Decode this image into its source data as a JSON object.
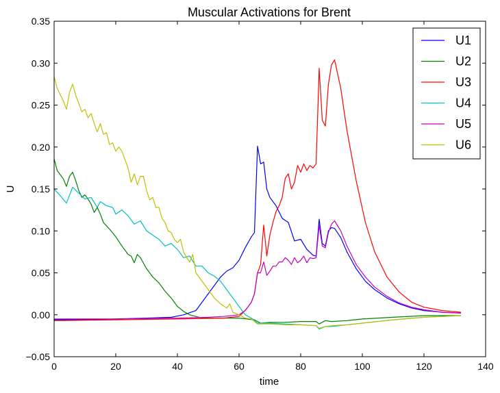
{
  "chart_data": {
    "type": "line",
    "title": "Muscular Activations for Brent",
    "xlabel": "time",
    "ylabel": "U",
    "xlim": [
      0,
      140
    ],
    "ylim": [
      -0.05,
      0.35
    ],
    "xticks": [
      0,
      20,
      40,
      60,
      80,
      100,
      120,
      140
    ],
    "xtick_labels": [
      "0",
      "20",
      "40",
      "60",
      "80",
      "100",
      "120",
      "140"
    ],
    "yticks": [
      -0.05,
      0.0,
      0.05,
      0.1,
      0.15,
      0.2,
      0.25,
      0.3,
      0.35
    ],
    "ytick_labels": [
      "−0.05",
      "0.00",
      "0.05",
      "0.10",
      "0.15",
      "0.20",
      "0.25",
      "0.30",
      "0.35"
    ],
    "grid": false,
    "legend_position": "top-right",
    "series": [
      {
        "name": "U1",
        "color": "#0000ff",
        "points": [
          [
            0,
            -0.006
          ],
          [
            10,
            -0.006
          ],
          [
            20,
            -0.005
          ],
          [
            30,
            -0.004
          ],
          [
            38,
            -0.003
          ],
          [
            42,
            0.0
          ],
          [
            46,
            0.005
          ],
          [
            48,
            0.015
          ],
          [
            50,
            0.025
          ],
          [
            52,
            0.035
          ],
          [
            54,
            0.045
          ],
          [
            56,
            0.052
          ],
          [
            58,
            0.056
          ],
          [
            60,
            0.065
          ],
          [
            62,
            0.08
          ],
          [
            64,
            0.093
          ],
          [
            65,
            0.098
          ],
          [
            66,
            0.201
          ],
          [
            67,
            0.18
          ],
          [
            68,
            0.182
          ],
          [
            69,
            0.15
          ],
          [
            70,
            0.14
          ],
          [
            72,
            0.13
          ],
          [
            74,
            0.115
          ],
          [
            76,
            0.11
          ],
          [
            78,
            0.088
          ],
          [
            80,
            0.09
          ],
          [
            82,
            0.078
          ],
          [
            84,
            0.071
          ],
          [
            85,
            0.07
          ],
          [
            86,
            0.114
          ],
          [
            87,
            0.085
          ],
          [
            88,
            0.082
          ],
          [
            89,
            0.1
          ],
          [
            90,
            0.104
          ],
          [
            91,
            0.103
          ],
          [
            93,
            0.092
          ],
          [
            95,
            0.075
          ],
          [
            98,
            0.055
          ],
          [
            101,
            0.04
          ],
          [
            104,
            0.03
          ],
          [
            108,
            0.02
          ],
          [
            112,
            0.013
          ],
          [
            116,
            0.008
          ],
          [
            120,
            0.005
          ],
          [
            126,
            0.003
          ],
          [
            132,
            0.002
          ]
        ]
      },
      {
        "name": "U2",
        "color": "#008000",
        "points": [
          [
            0,
            0.186
          ],
          [
            1,
            0.172
          ],
          [
            3,
            0.162
          ],
          [
            4,
            0.153
          ],
          [
            5,
            0.165
          ],
          [
            6,
            0.17
          ],
          [
            7,
            0.16
          ],
          [
            8,
            0.148
          ],
          [
            9,
            0.14
          ],
          [
            10,
            0.143
          ],
          [
            11,
            0.138
          ],
          [
            12,
            0.132
          ],
          [
            13,
            0.122
          ],
          [
            14,
            0.128
          ],
          [
            15,
            0.12
          ],
          [
            16,
            0.11
          ],
          [
            18,
            0.102
          ],
          [
            20,
            0.093
          ],
          [
            22,
            0.082
          ],
          [
            24,
            0.072
          ],
          [
            25,
            0.07
          ],
          [
            26,
            0.062
          ],
          [
            27,
            0.072
          ],
          [
            28,
            0.068
          ],
          [
            30,
            0.055
          ],
          [
            32,
            0.045
          ],
          [
            34,
            0.038
          ],
          [
            36,
            0.028
          ],
          [
            38,
            0.02
          ],
          [
            40,
            0.01
          ],
          [
            42,
            0.004
          ],
          [
            44,
            0.0
          ],
          [
            48,
            -0.004
          ],
          [
            55,
            -0.004
          ],
          [
            60,
            -0.004
          ],
          [
            65,
            -0.006
          ],
          [
            67,
            -0.01
          ],
          [
            70,
            -0.009
          ],
          [
            75,
            -0.009
          ],
          [
            80,
            -0.008
          ],
          [
            85,
            -0.008
          ],
          [
            86,
            -0.011
          ],
          [
            88,
            -0.007
          ],
          [
            90,
            -0.008
          ],
          [
            95,
            -0.007
          ],
          [
            100,
            -0.005
          ],
          [
            110,
            -0.003
          ],
          [
            120,
            -0.001
          ],
          [
            132,
            -0.001
          ]
        ]
      },
      {
        "name": "U3",
        "color": "#ff0000",
        "points": [
          [
            0,
            -0.007
          ],
          [
            20,
            -0.006
          ],
          [
            40,
            -0.005
          ],
          [
            55,
            -0.004
          ],
          [
            60,
            -0.002
          ],
          [
            62,
            0.005
          ],
          [
            64,
            0.015
          ],
          [
            65,
            0.025
          ],
          [
            66,
            0.05
          ],
          [
            67,
            0.06
          ],
          [
            68,
            0.107
          ],
          [
            69,
            0.07
          ],
          [
            70,
            0.095
          ],
          [
            71,
            0.11
          ],
          [
            72,
            0.123
          ],
          [
            73,
            0.13
          ],
          [
            74,
            0.14
          ],
          [
            75,
            0.163
          ],
          [
            76,
            0.168
          ],
          [
            77,
            0.15
          ],
          [
            78,
            0.158
          ],
          [
            79,
            0.178
          ],
          [
            80,
            0.17
          ],
          [
            81,
            0.18
          ],
          [
            82,
            0.172
          ],
          [
            83,
            0.178
          ],
          [
            84,
            0.175
          ],
          [
            85,
            0.18
          ],
          [
            86,
            0.294
          ],
          [
            87,
            0.232
          ],
          [
            88,
            0.225
          ],
          [
            89,
            0.275
          ],
          [
            90,
            0.298
          ],
          [
            91,
            0.304
          ],
          [
            93,
            0.27
          ],
          [
            95,
            0.22
          ],
          [
            98,
            0.16
          ],
          [
            101,
            0.11
          ],
          [
            104,
            0.075
          ],
          [
            108,
            0.045
          ],
          [
            112,
            0.027
          ],
          [
            116,
            0.015
          ],
          [
            120,
            0.009
          ],
          [
            126,
            0.005
          ],
          [
            132,
            0.003
          ]
        ]
      },
      {
        "name": "U4",
        "color": "#00bfbf",
        "points": [
          [
            0,
            0.15
          ],
          [
            2,
            0.142
          ],
          [
            4,
            0.133
          ],
          [
            6,
            0.152
          ],
          [
            8,
            0.145
          ],
          [
            10,
            0.138
          ],
          [
            12,
            0.14
          ],
          [
            14,
            0.128
          ],
          [
            15,
            0.135
          ],
          [
            17,
            0.13
          ],
          [
            19,
            0.128
          ],
          [
            20,
            0.12
          ],
          [
            22,
            0.125
          ],
          [
            24,
            0.118
          ],
          [
            26,
            0.108
          ],
          [
            28,
            0.112
          ],
          [
            30,
            0.1
          ],
          [
            32,
            0.095
          ],
          [
            34,
            0.09
          ],
          [
            36,
            0.082
          ],
          [
            38,
            0.085
          ],
          [
            40,
            0.078
          ],
          [
            42,
            0.068
          ],
          [
            44,
            0.07
          ],
          [
            46,
            0.058
          ],
          [
            48,
            0.058
          ],
          [
            50,
            0.05
          ],
          [
            52,
            0.046
          ],
          [
            54,
            0.04
          ],
          [
            56,
            0.03
          ],
          [
            58,
            0.02
          ],
          [
            60,
            0.01
          ],
          [
            62,
            0.0
          ],
          [
            64,
            -0.004
          ],
          [
            66,
            -0.01
          ],
          [
            70,
            -0.01
          ],
          [
            75,
            -0.011
          ],
          [
            80,
            -0.012
          ],
          [
            85,
            -0.013
          ],
          [
            86,
            -0.017
          ],
          [
            88,
            -0.014
          ],
          [
            90,
            -0.014
          ],
          [
            95,
            -0.012
          ],
          [
            100,
            -0.01
          ],
          [
            110,
            -0.006
          ],
          [
            120,
            -0.003
          ],
          [
            132,
            -0.001
          ]
        ]
      },
      {
        "name": "U5",
        "color": "#bf00bf",
        "points": [
          [
            0,
            -0.005
          ],
          [
            20,
            -0.005
          ],
          [
            40,
            -0.004
          ],
          [
            50,
            -0.003
          ],
          [
            55,
            -0.002
          ],
          [
            60,
            0.0
          ],
          [
            62,
            0.005
          ],
          [
            64,
            0.015
          ],
          [
            65,
            0.025
          ],
          [
            66,
            0.05
          ],
          [
            67,
            0.05
          ],
          [
            68,
            0.063
          ],
          [
            69,
            0.047
          ],
          [
            70,
            0.052
          ],
          [
            71,
            0.058
          ],
          [
            72,
            0.058
          ],
          [
            73,
            0.063
          ],
          [
            74,
            0.063
          ],
          [
            75,
            0.068
          ],
          [
            76,
            0.065
          ],
          [
            77,
            0.06
          ],
          [
            78,
            0.068
          ],
          [
            79,
            0.062
          ],
          [
            80,
            0.065
          ],
          [
            81,
            0.07
          ],
          [
            82,
            0.062
          ],
          [
            83,
            0.068
          ],
          [
            84,
            0.067
          ],
          [
            85,
            0.068
          ],
          [
            86,
            0.107
          ],
          [
            87,
            0.082
          ],
          [
            88,
            0.08
          ],
          [
            89,
            0.098
          ],
          [
            90,
            0.108
          ],
          [
            91,
            0.112
          ],
          [
            93,
            0.1
          ],
          [
            95,
            0.082
          ],
          [
            98,
            0.06
          ],
          [
            101,
            0.045
          ],
          [
            104,
            0.033
          ],
          [
            108,
            0.022
          ],
          [
            112,
            0.014
          ],
          [
            116,
            0.009
          ],
          [
            120,
            0.006
          ],
          [
            126,
            0.003
          ],
          [
            132,
            0.002
          ]
        ]
      },
      {
        "name": "U6",
        "color": "#bfbf00",
        "points": [
          [
            0,
            0.284
          ],
          [
            1,
            0.27
          ],
          [
            3,
            0.255
          ],
          [
            4,
            0.245
          ],
          [
            5,
            0.265
          ],
          [
            6,
            0.275
          ],
          [
            7,
            0.262
          ],
          [
            8,
            0.252
          ],
          [
            9,
            0.242
          ],
          [
            10,
            0.245
          ],
          [
            11,
            0.235
          ],
          [
            12,
            0.24
          ],
          [
            13,
            0.228
          ],
          [
            14,
            0.218
          ],
          [
            15,
            0.228
          ],
          [
            16,
            0.215
          ],
          [
            17,
            0.217
          ],
          [
            18,
            0.203
          ],
          [
            19,
            0.205
          ],
          [
            20,
            0.195
          ],
          [
            21,
            0.2
          ],
          [
            22,
            0.195
          ],
          [
            23,
            0.185
          ],
          [
            24,
            0.175
          ],
          [
            25,
            0.158
          ],
          [
            26,
            0.168
          ],
          [
            27,
            0.155
          ],
          [
            28,
            0.165
          ],
          [
            29,
            0.165
          ],
          [
            30,
            0.148
          ],
          [
            31,
            0.137
          ],
          [
            32,
            0.14
          ],
          [
            33,
            0.128
          ],
          [
            34,
            0.128
          ],
          [
            35,
            0.115
          ],
          [
            36,
            0.11
          ],
          [
            37,
            0.1
          ],
          [
            38,
            0.098
          ],
          [
            39,
            0.09
          ],
          [
            40,
            0.086
          ],
          [
            41,
            0.09
          ],
          [
            42,
            0.075
          ],
          [
            43,
            0.068
          ],
          [
            44,
            0.063
          ],
          [
            45,
            0.072
          ],
          [
            46,
            0.05
          ],
          [
            47,
            0.045
          ],
          [
            48,
            0.04
          ],
          [
            49,
            0.035
          ],
          [
            50,
            0.03
          ],
          [
            52,
            0.02
          ],
          [
            54,
            0.013
          ],
          [
            56,
            0.008
          ],
          [
            57,
            0.013
          ],
          [
            58,
            0.003
          ],
          [
            60,
            0.0
          ],
          [
            62,
            -0.004
          ],
          [
            64,
            -0.005
          ],
          [
            66,
            -0.011
          ],
          [
            70,
            -0.011
          ],
          [
            75,
            -0.012
          ],
          [
            80,
            -0.012
          ],
          [
            85,
            -0.013
          ],
          [
            86,
            -0.016
          ],
          [
            88,
            -0.014
          ],
          [
            90,
            -0.013
          ],
          [
            95,
            -0.012
          ],
          [
            100,
            -0.01
          ],
          [
            110,
            -0.006
          ],
          [
            120,
            -0.003
          ],
          [
            132,
            -0.001
          ]
        ]
      }
    ]
  }
}
